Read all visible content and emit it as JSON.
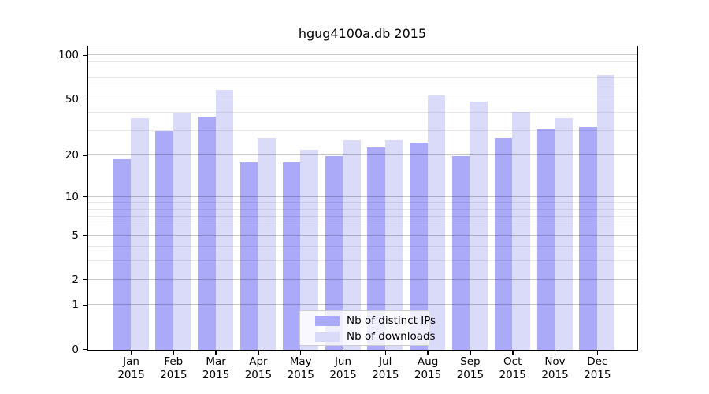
{
  "chart_data": {
    "type": "bar",
    "title": "hgug4100a.db 2015",
    "categories": [
      "Jan 2015",
      "Feb 2015",
      "Mar 2015",
      "Apr 2015",
      "May 2015",
      "Jun 2015",
      "Jul 2015",
      "Aug 2015",
      "Sep 2015",
      "Oct 2015",
      "Nov 2015",
      "Dec 2015"
    ],
    "x_tick_months": [
      "Jan",
      "Feb",
      "Mar",
      "Apr",
      "May",
      "Jun",
      "Jul",
      "Aug",
      "Sep",
      "Oct",
      "Nov",
      "Dec"
    ],
    "x_tick_year": "2015",
    "series": [
      {
        "name": "Nb of distinct IPs",
        "color": "#aaaaf9",
        "values": [
          19,
          30,
          38,
          18,
          18,
          20,
          23,
          25,
          20,
          27,
          31,
          32
        ]
      },
      {
        "name": "Nb of downloads",
        "color": "#dadaf9",
        "values": [
          37,
          40,
          58,
          27,
          22,
          26,
          26,
          53,
          48,
          41,
          37,
          74
        ]
      }
    ],
    "y_axis": {
      "scale": "log1p",
      "tick_values": [
        0,
        1,
        2,
        5,
        10,
        20,
        50,
        100
      ],
      "tick_labels": [
        "0",
        "1",
        "2",
        "5",
        "10",
        "20",
        "50",
        "100"
      ],
      "minor_gridline_values": [
        3,
        4,
        6,
        7,
        8,
        9,
        30,
        40,
        60,
        70,
        80,
        90
      ],
      "range_max": 115
    },
    "grid": true,
    "legend": {
      "position": "lower center",
      "entries": [
        "Nb of distinct IPs",
        "Nb of downloads"
      ]
    },
    "style": {
      "major_grid_color": "#c6c6c6",
      "minor_grid_color": "#e9e9e9",
      "axis_color": "#000000",
      "background": "#ffffff"
    }
  }
}
